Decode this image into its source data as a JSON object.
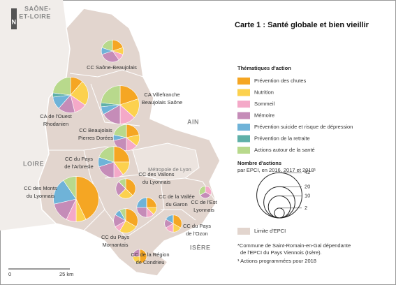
{
  "title": "Carte 1 : Santé globale et bien vieillir",
  "north": "N",
  "neighbors": [
    "SAÔNE-",
    "ET-LOIRE",
    "AIN",
    "LOIRE",
    "ISÈRE"
  ],
  "metropole": "Métropole de Lyon",
  "themes": {
    "heading": "Thématiques d'action",
    "items": [
      {
        "name": "Prévention des chutes",
        "color": "#f5a623"
      },
      {
        "name": "Nutrition",
        "color": "#fcd14e"
      },
      {
        "name": "Sommeil",
        "color": "#f4a9c8"
      },
      {
        "name": "Mémoire",
        "color": "#c58cb8"
      },
      {
        "name": "Prévention suicide et risque de dépression",
        "color": "#6fb3d8"
      },
      {
        "name": "Prévention de la retraite",
        "color": "#5fb0a8"
      },
      {
        "name": "Actions autour de la santé",
        "color": "#b8d98c"
      }
    ]
  },
  "size_legend": {
    "heading": "Nombre d'actions",
    "subheading": "par EPCI, en 2016, 2017 et 2018¹",
    "values": [
      42,
      20,
      10,
      2
    ]
  },
  "boundary_legend": "Limite d'EPCI",
  "epcis": [
    {
      "label": [
        "CC Saône-Beaujolais"
      ],
      "values": [
        2,
        1,
        1,
        3,
        1,
        0,
        2
      ]
    },
    {
      "label": [
        "CA Villefranche",
        "Beaujolais Saône"
      ],
      "values": [
        6,
        5,
        4,
        5,
        2,
        1,
        7
      ]
    },
    {
      "label": [
        "CA de l'Ouest",
        "Rhodanien"
      ],
      "values": [
        3,
        6,
        3,
        4,
        3,
        1,
        6
      ]
    },
    {
      "label": [
        "CC Beaujolais",
        "Pierres Dorées"
      ],
      "values": [
        3,
        2,
        2,
        3,
        1,
        0,
        3
      ]
    },
    {
      "label": [
        "CC du Pays",
        "de l'Arbresle"
      ],
      "values": [
        5,
        3,
        2,
        4,
        2,
        0,
        4
      ]
    },
    {
      "label": [
        "CC des Monts",
        "du Lyonnais"
      ],
      "values": [
        18,
        3,
        3,
        6,
        8,
        0,
        4
      ]
    },
    {
      "label": [
        "CC des Vallons",
        "du Lyonnais"
      ],
      "values": [
        3,
        2,
        0,
        2,
        0,
        0,
        1
      ]
    },
    {
      "label": [
        "CC de la Vallée",
        "du Garon"
      ],
      "values": [
        2,
        1,
        1,
        2,
        2,
        0,
        0
      ]
    },
    {
      "label": [
        "CC de l'Est",
        "Lyonnais"
      ],
      "values": [
        0,
        0,
        1,
        1,
        0,
        0,
        1
      ]
    },
    {
      "label": [
        "CC du Pays",
        "Mornantais"
      ],
      "values": [
        4,
        3,
        1,
        2,
        1,
        0,
        1
      ]
    },
    {
      "label": [
        "CC du Pays",
        "de l'Ozon"
      ],
      "values": [
        2,
        1,
        1,
        1,
        1,
        0,
        0
      ]
    },
    {
      "label": [
        "CC de la Région",
        "de Condrieu"
      ],
      "values": [
        2,
        1,
        0,
        1,
        0,
        0,
        0
      ]
    }
  ],
  "footnotes": [
    "*Commune de Saint-Romain-en-Gal dépendante",
    "de l'EPCI du Pays Viennois (Isère).",
    "¹ Actions programmées pour 2018"
  ],
  "scale": [
    "0",
    "25 km"
  ]
}
